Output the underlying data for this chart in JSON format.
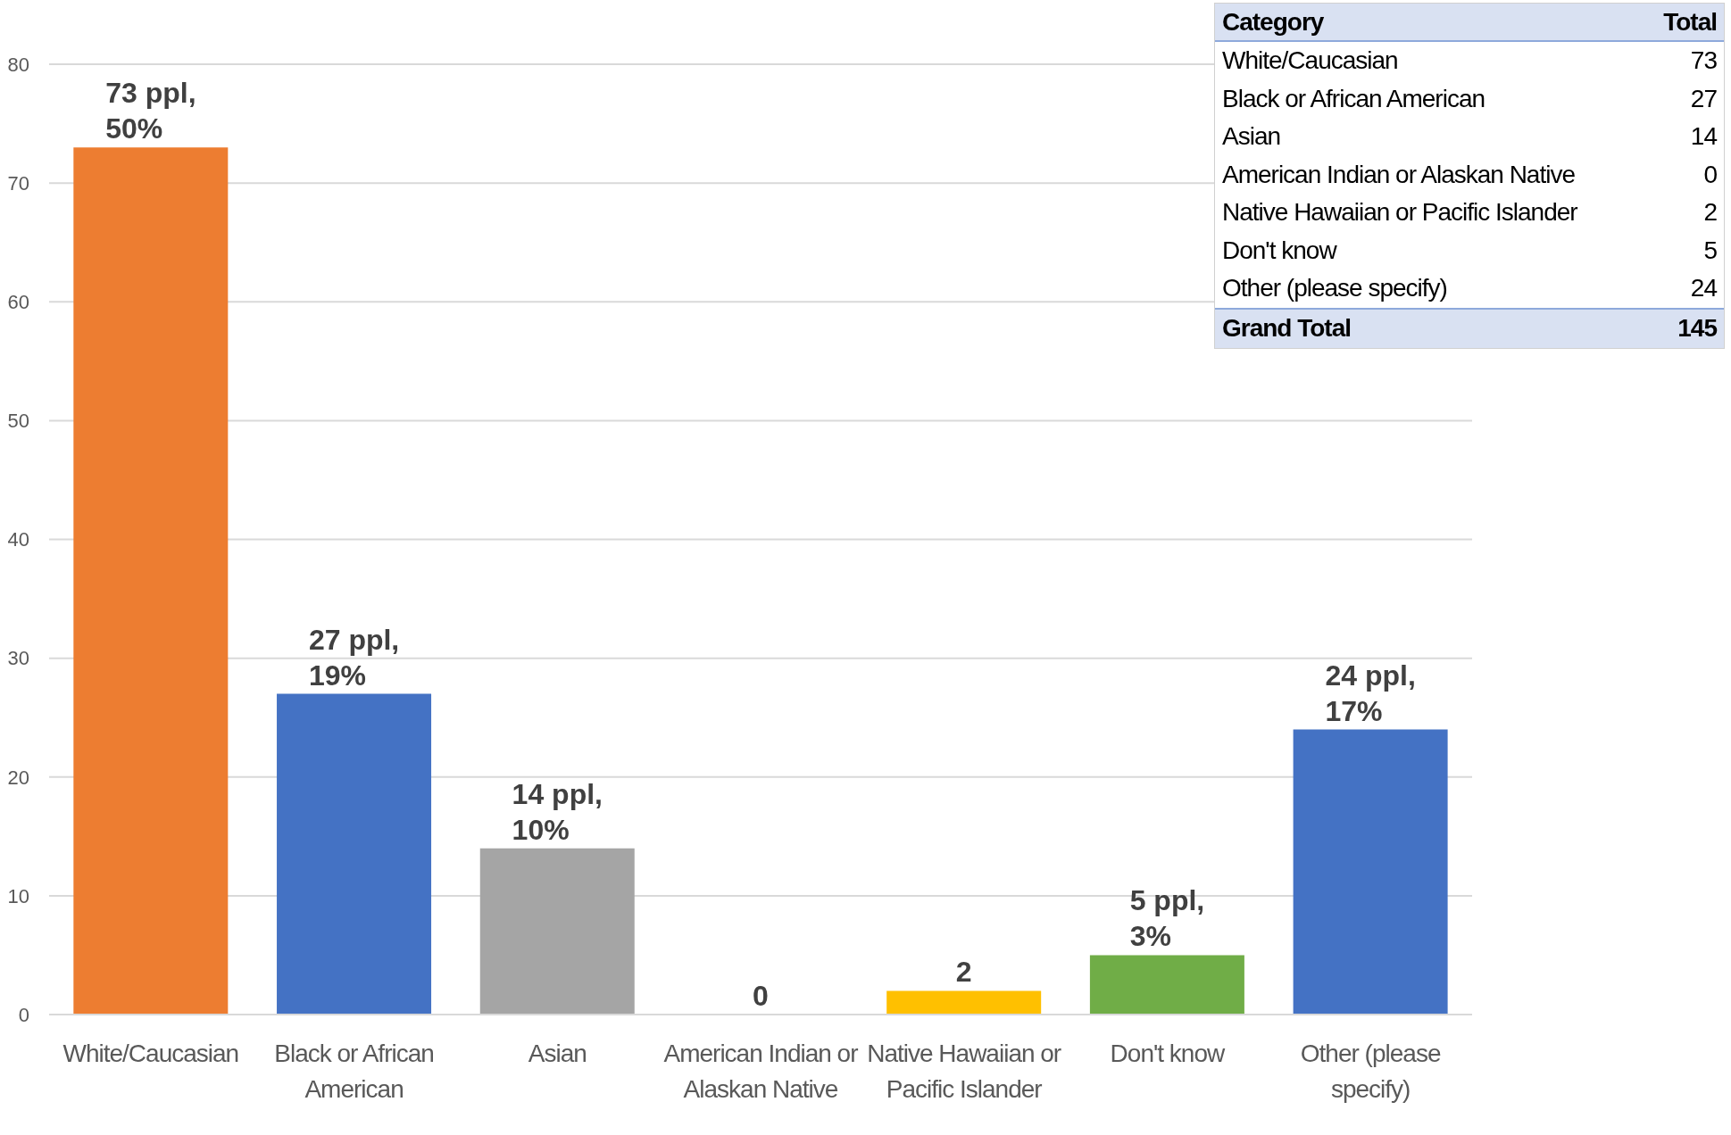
{
  "chart_data": {
    "type": "bar",
    "categories": [
      "White/Caucasian",
      "Black or African American",
      "Asian",
      "American Indian or Alaskan Native",
      "Native Hawaiian or Pacific Islander",
      "Don't know",
      "Other (please specify)"
    ],
    "values": [
      73,
      27,
      14,
      0,
      2,
      5,
      24
    ],
    "colors": [
      "#ed7d31",
      "#4472c4",
      "#a5a5a5",
      "#5b9bd5",
      "#ffc000",
      "#70ad47",
      "#4472c4"
    ],
    "value_labels": [
      "73 ppl, 50%",
      "27 ppl, 19%",
      "14 ppl, 10%",
      "0",
      "2",
      "5 ppl, 3%",
      "24 ppl, 17%"
    ],
    "ylim": [
      0,
      80
    ],
    "yticks": [
      0,
      10,
      20,
      30,
      40,
      50,
      60,
      70,
      80
    ],
    "grid": "y",
    "annotations": [
      "Category",
      "Total",
      "73",
      "27",
      "14",
      "0",
      "2",
      "5",
      "24",
      "Grand Total",
      "145"
    ]
  }
}
